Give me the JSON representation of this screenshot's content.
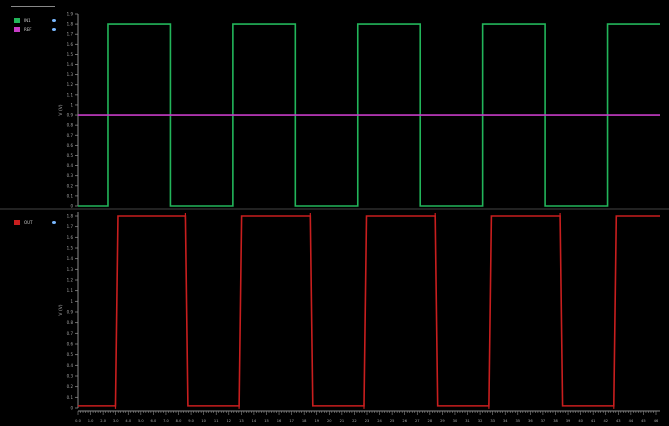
{
  "colors": {
    "background": "#000000",
    "axis": "#8a8a8a",
    "vin": "#22b55a",
    "vref": "#c63cc6",
    "vout": "#c81e1e"
  },
  "legend_top": [
    {
      "name": "IN1",
      "color": "#22b55a",
      "icon": "eye-icon"
    },
    {
      "name": "REF",
      "color": "#c63cc6",
      "icon": "eye-icon"
    }
  ],
  "legend_bottom": [
    {
      "name": "OUT",
      "color": "#c81e1e",
      "icon": "eye-icon"
    }
  ],
  "chart_data": [
    {
      "type": "line",
      "ylabel": "V (V)",
      "ylim": [
        0,
        1.9
      ],
      "yticks": [
        "0",
        "0.1",
        "0.2",
        "0.3",
        "0.4",
        "0.5",
        "0.6",
        "0.7",
        "0.8",
        "0.9",
        "1",
        "1.1",
        "1.2",
        "1.3",
        "1.4",
        "1.5",
        "1.6",
        "1.7",
        "1.8",
        "1.9"
      ],
      "xlim": [
        0,
        46.6
      ],
      "grid": false,
      "series": [
        {
          "name": "IN1",
          "color": "#22b55a",
          "x": [
            0,
            2.4,
            2.4,
            7.4,
            7.4,
            12.4,
            12.4,
            17.4,
            17.4,
            22.4,
            22.4,
            27.4,
            27.4,
            32.4,
            32.4,
            37.4,
            37.4,
            42.4,
            42.4,
            46.6
          ],
          "y": [
            0,
            0,
            1.8,
            1.8,
            0,
            0,
            1.8,
            1.8,
            0,
            0,
            1.8,
            1.8,
            0,
            0,
            1.8,
            1.8,
            0,
            0,
            1.8,
            1.8
          ]
        },
        {
          "name": "REF",
          "color": "#c63cc6",
          "x": [
            0,
            46.6
          ],
          "y": [
            0.9,
            0.9
          ]
        }
      ]
    },
    {
      "type": "line",
      "ylabel": "V (V)",
      "ylim": [
        0,
        1.85
      ],
      "yticks": [
        "0",
        "0.1",
        "0.2",
        "0.3",
        "0.4",
        "0.5",
        "0.6",
        "0.7",
        "0.8",
        "0.9",
        "1",
        "1.1",
        "1.2",
        "1.3",
        "1.4",
        "1.5",
        "1.6",
        "1.7",
        "1.8"
      ],
      "xlim": [
        0,
        46.6
      ],
      "xticks": [
        "0.0",
        "1.0",
        "2.0",
        "3.0",
        "4.0",
        "5.0",
        "6.0",
        "7.0",
        "8.0",
        "9.0",
        "10",
        "11",
        "12",
        "13",
        "14",
        "15",
        "16",
        "17",
        "18",
        "19",
        "20",
        "21",
        "22",
        "23",
        "24",
        "25",
        "26",
        "27",
        "28",
        "29",
        "30",
        "31",
        "32",
        "33",
        "34",
        "35",
        "36",
        "37",
        "38",
        "39",
        "40",
        "41",
        "42",
        "43",
        "44",
        "45",
        "46"
      ],
      "grid": false,
      "series": [
        {
          "name": "OUT",
          "color": "#c81e1e",
          "x": [
            0,
            3.0,
            3.2,
            8.6,
            8.8,
            12.9,
            13.1,
            18.6,
            18.8,
            22.9,
            23.1,
            28.6,
            28.8,
            32.9,
            33.1,
            38.6,
            38.8,
            42.9,
            43.1,
            46.6
          ],
          "y": [
            0.02,
            0.02,
            1.8,
            1.8,
            0.02,
            0.02,
            1.8,
            1.8,
            0.02,
            0.02,
            1.8,
            1.8,
            0.02,
            0.02,
            1.8,
            1.8,
            0.02,
            0.02,
            1.8,
            1.8
          ]
        }
      ]
    }
  ]
}
